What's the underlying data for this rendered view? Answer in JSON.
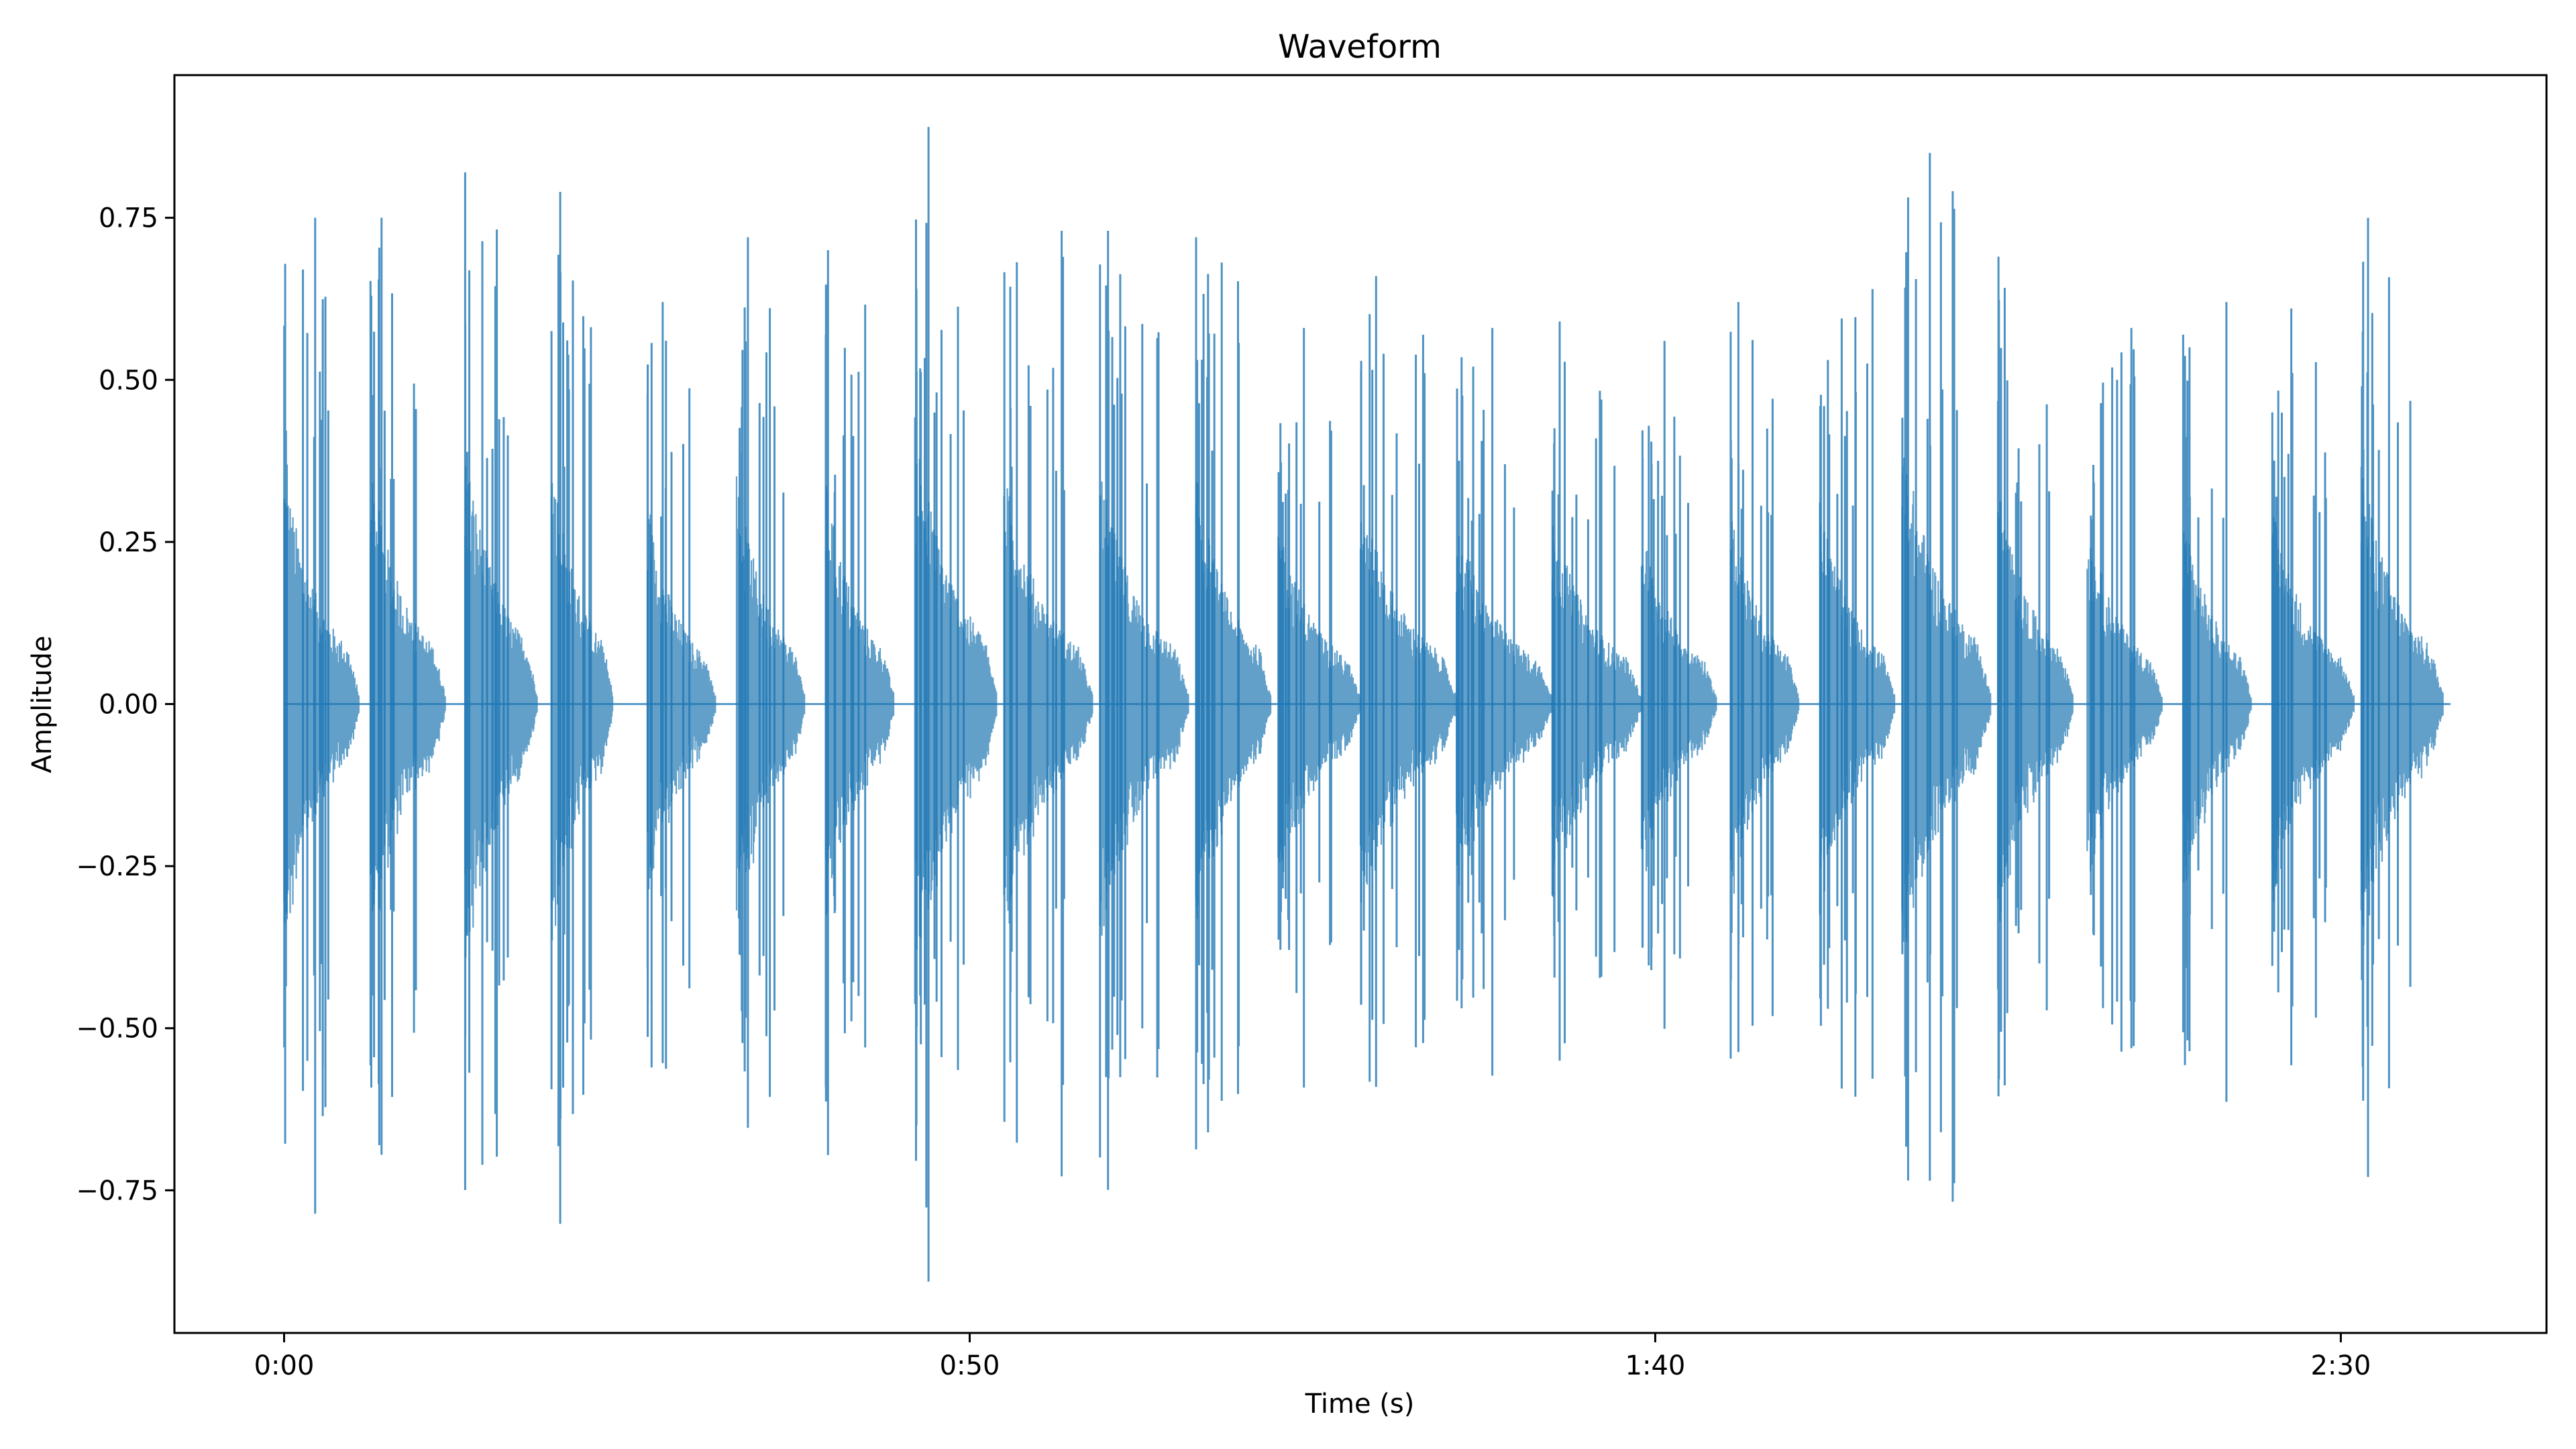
{
  "chart_data": {
    "type": "area",
    "title": "Waveform",
    "xlabel": "Time (s)",
    "ylabel": "Amplitude",
    "xlim": [
      -8,
      165
    ],
    "ylim": [
      -0.97,
      0.97
    ],
    "x_ticks": [
      {
        "value": 0,
        "label": "0:00"
      },
      {
        "value": 50,
        "label": "0:50"
      },
      {
        "value": 100,
        "label": "1:40"
      },
      {
        "value": 150,
        "label": "2:30"
      }
    ],
    "y_ticks": [
      {
        "value": 0.75,
        "label": "0.75"
      },
      {
        "value": 0.5,
        "label": "0.50"
      },
      {
        "value": 0.25,
        "label": "0.25"
      },
      {
        "value": 0.0,
        "label": "0.00"
      },
      {
        "value": -0.25,
        "label": "−0.25"
      },
      {
        "value": -0.5,
        "label": "−0.50"
      },
      {
        "value": -0.75,
        "label": "−0.75"
      }
    ],
    "color": "#1f77b4",
    "grid": false,
    "duration": 158,
    "segments": [
      {
        "start": 0.0,
        "end": 5.5,
        "peak": 0.75
      },
      {
        "start": 6.3,
        "end": 11.8,
        "peak": 0.75
      },
      {
        "start": 13.2,
        "end": 18.5,
        "peak": 0.82
      },
      {
        "start": 19.5,
        "end": 24.0,
        "peak": 0.79
      },
      {
        "start": 26.5,
        "end": 31.5,
        "peak": 0.62
      },
      {
        "start": 33.0,
        "end": 38.0,
        "peak": 0.72
      },
      {
        "start": 39.5,
        "end": 44.5,
        "peak": 0.7
      },
      {
        "start": 46.0,
        "end": 52.0,
        "peak": 0.89
      },
      {
        "start": 52.5,
        "end": 59.0,
        "peak": 0.73
      },
      {
        "start": 59.5,
        "end": 66.0,
        "peak": 0.73
      },
      {
        "start": 66.5,
        "end": 72.0,
        "peak": 0.72
      },
      {
        "start": 72.5,
        "end": 78.5,
        "peak": 0.58
      },
      {
        "start": 78.5,
        "end": 85.5,
        "peak": 0.66
      },
      {
        "start": 85.5,
        "end": 92.5,
        "peak": 0.58
      },
      {
        "start": 92.5,
        "end": 99.0,
        "peak": 0.59
      },
      {
        "start": 99.0,
        "end": 104.5,
        "peak": 0.56
      },
      {
        "start": 105.5,
        "end": 110.5,
        "peak": 0.62
      },
      {
        "start": 112.0,
        "end": 117.5,
        "peak": 0.64
      },
      {
        "start": 118.0,
        "end": 124.5,
        "peak": 0.85
      },
      {
        "start": 125.0,
        "end": 130.5,
        "peak": 0.69
      },
      {
        "start": 131.5,
        "end": 137.0,
        "peak": 0.58
      },
      {
        "start": 138.5,
        "end": 143.5,
        "peak": 0.62
      },
      {
        "start": 145.0,
        "end": 151.0,
        "peak": 0.61
      },
      {
        "start": 151.5,
        "end": 157.5,
        "peak": 0.75
      }
    ]
  }
}
